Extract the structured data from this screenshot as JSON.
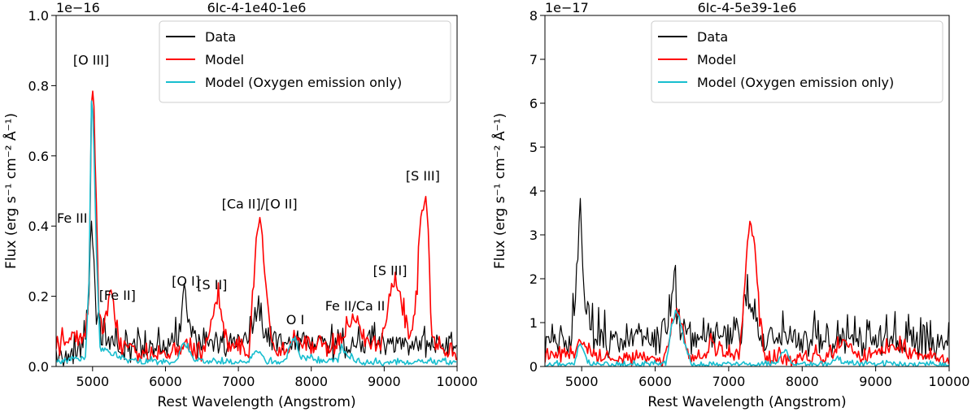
{
  "chart_data": [
    {
      "type": "line",
      "title": "6Ic-4-1e40-1e6",
      "offset_text": "1e−16",
      "xlabel": "Rest Wavelength (Angstrom)",
      "ylabel": "Flux (erg s⁻¹ cm⁻² Å⁻¹)",
      "xlim": [
        4500,
        10000
      ],
      "ylim": [
        0,
        1.0
      ],
      "xticks": [
        5000,
        6000,
        7000,
        8000,
        9000,
        10000
      ],
      "xtick_labels": [
        "5000",
        "6000",
        "7000",
        "8000",
        "9000",
        "10000"
      ],
      "yticks": [
        0,
        0.2,
        0.4,
        0.6,
        0.8,
        1.0
      ],
      "ytick_labels": [
        "0.0",
        "0.2",
        "0.4",
        "0.6",
        "0.8",
        "1.0"
      ],
      "legend_position": "top-right",
      "series": [
        {
          "name": "Data",
          "color": "#000000",
          "noise": 0.085,
          "x": [
            4500,
            4850,
            4900,
            4950,
            4990,
            5010,
            5050,
            5150,
            5400,
            5800,
            6100,
            6200,
            6260,
            6300,
            6450,
            6600,
            7000,
            7200,
            7280,
            7330,
            7450,
            7600,
            7750,
            7900,
            8200,
            8600,
            9000,
            9400,
            9700,
            10000
          ],
          "y": [
            0.02,
            0.04,
            0.08,
            0.2,
            0.4,
            0.32,
            0.12,
            0.06,
            0.04,
            0.05,
            0.05,
            0.08,
            0.22,
            0.1,
            0.05,
            0.05,
            0.06,
            0.1,
            0.18,
            0.1,
            0.06,
            0.06,
            0.07,
            0.06,
            0.05,
            0.05,
            0.05,
            0.05,
            0.05,
            0.04
          ]
        },
        {
          "name": "Model",
          "color": "#ff0000",
          "noise": 0.06,
          "x": [
            4500,
            4650,
            4800,
            4900,
            4950,
            4990,
            5010,
            5040,
            5080,
            5150,
            5250,
            5300,
            5400,
            5600,
            6000,
            6150,
            6250,
            6300,
            6400,
            6550,
            6680,
            6720,
            6780,
            6900,
            7150,
            7250,
            7300,
            7350,
            7450,
            7600,
            7700,
            7800,
            7950,
            8300,
            8450,
            8550,
            8650,
            8750,
            8950,
            9050,
            9150,
            9200,
            9350,
            9450,
            9500,
            9550,
            9600,
            9650,
            9800,
            10000
          ],
          "y": [
            0.04,
            0.08,
            0.06,
            0.08,
            0.2,
            0.78,
            0.8,
            0.56,
            0.15,
            0.1,
            0.22,
            0.12,
            0.05,
            0.03,
            0.02,
            0.03,
            0.06,
            0.06,
            0.03,
            0.04,
            0.18,
            0.2,
            0.1,
            0.04,
            0.04,
            0.38,
            0.4,
            0.3,
            0.05,
            0.04,
            0.05,
            0.07,
            0.04,
            0.05,
            0.08,
            0.14,
            0.12,
            0.06,
            0.05,
            0.16,
            0.22,
            0.2,
            0.08,
            0.2,
            0.42,
            0.48,
            0.4,
            0.06,
            0.04,
            0.02
          ]
        },
        {
          "name": "Model (Oxygen emission only)",
          "color": "#17becf",
          "noise": 0.02,
          "x": [
            4500,
            4900,
            4950,
            4985,
            5000,
            5020,
            5050,
            5100,
            5500,
            6150,
            6220,
            6300,
            6350,
            6450,
            7100,
            7250,
            7300,
            7400,
            7650,
            7720,
            7780,
            7850,
            8200,
            8350,
            8420,
            8500,
            8650,
            10000
          ],
          "y": [
            0.01,
            0.02,
            0.22,
            0.76,
            0.74,
            0.6,
            0.35,
            0.05,
            0.01,
            0.01,
            0.05,
            0.06,
            0.03,
            0.01,
            0.01,
            0.04,
            0.04,
            0.01,
            0.01,
            0.07,
            0.08,
            0.02,
            0.01,
            0.01,
            0.05,
            0.03,
            0.01,
            0.01
          ]
        }
      ],
      "annotations": [
        {
          "text": "[O III]",
          "x": 4980,
          "y": 0.86
        },
        {
          "text": "Fe III",
          "x": 4720,
          "y": 0.41
        },
        {
          "text": "[Fe II]",
          "x": 5340,
          "y": 0.19
        },
        {
          "text": "[Ca II]/[O II]",
          "x": 7290,
          "y": 0.45
        },
        {
          "text": "[O I]",
          "x": 6280,
          "y": 0.23
        },
        {
          "text": "[S II]",
          "x": 6640,
          "y": 0.22
        },
        {
          "text": "O I",
          "x": 7780,
          "y": 0.12
        },
        {
          "text": "Fe II/Ca II",
          "x": 8600,
          "y": 0.16
        },
        {
          "text": "[S III]",
          "x": 9080,
          "y": 0.26
        },
        {
          "text": "[S III]",
          "x": 9530,
          "y": 0.53
        }
      ]
    },
    {
      "type": "line",
      "title": "6Ic-4-5e39-1e6",
      "offset_text": "1e−17",
      "xlabel": "Rest Wavelength (Angstrom)",
      "ylabel": "Flux (erg s⁻¹ cm⁻² Å⁻¹)",
      "xlim": [
        4500,
        10000
      ],
      "ylim": [
        0,
        8
      ],
      "xticks": [
        5000,
        6000,
        7000,
        8000,
        9000,
        10000
      ],
      "xtick_labels": [
        "5000",
        "6000",
        "7000",
        "8000",
        "9000",
        "10000"
      ],
      "yticks": [
        0,
        1,
        2,
        3,
        4,
        5,
        6,
        7,
        8
      ],
      "ytick_labels": [
        "0",
        "1",
        "2",
        "3",
        "4",
        "5",
        "6",
        "7",
        "8"
      ],
      "legend_position": "top-right",
      "series": [
        {
          "name": "Data",
          "color": "#000000",
          "noise": 0.9,
          "x": [
            4500,
            4850,
            4920,
            4960,
            4985,
            5010,
            5060,
            5150,
            5400,
            5800,
            6150,
            6220,
            6260,
            6290,
            6350,
            6450,
            6700,
            7000,
            7200,
            7270,
            7330,
            7450,
            7700,
            8000,
            8500,
            9000,
            9500,
            10000
          ],
          "y": [
            0.3,
            0.4,
            1.8,
            3.2,
            4.0,
            2.4,
            1.2,
            0.7,
            0.5,
            0.5,
            0.6,
            1.5,
            2.1,
            1.3,
            0.8,
            0.6,
            0.6,
            0.6,
            0.8,
            1.6,
            1.0,
            0.6,
            0.6,
            0.5,
            0.5,
            0.5,
            0.5,
            0.4
          ]
        },
        {
          "name": "Model",
          "color": "#ff0000",
          "noise": 0.35,
          "x": [
            4500,
            4900,
            4960,
            5000,
            5040,
            5100,
            5400,
            6100,
            6200,
            6260,
            6320,
            6380,
            6450,
            6700,
            6760,
            6820,
            7150,
            7250,
            7300,
            7350,
            7420,
            7500,
            7800,
            8400,
            8550,
            8650,
            8800,
            9000,
            9300,
            9500,
            10000
          ],
          "y": [
            0.2,
            0.25,
            0.5,
            0.55,
            0.45,
            0.3,
            0.1,
            0.1,
            0.6,
            1.1,
            1.2,
            0.8,
            0.2,
            0.2,
            0.7,
            0.3,
            0.2,
            2.6,
            3.2,
            2.8,
            1.0,
            0.15,
            0.1,
            0.2,
            0.55,
            0.4,
            0.15,
            0.3,
            0.4,
            0.2,
            0.1
          ]
        },
        {
          "name": "Model (Oxygen emission only)",
          "color": "#17becf",
          "noise": 0.12,
          "x": [
            4500,
            4900,
            4960,
            4990,
            5030,
            5080,
            5300,
            6150,
            6220,
            6280,
            6330,
            6400,
            6500,
            7650,
            7720,
            7780,
            7850,
            8400,
            8480,
            8550,
            10000
          ],
          "y": [
            0.02,
            0.05,
            0.4,
            0.5,
            0.35,
            0.05,
            0.02,
            0.05,
            0.9,
            1.25,
            1.1,
            0.5,
            0.03,
            0.03,
            0.3,
            0.35,
            0.05,
            0.03,
            0.2,
            0.05,
            0.02
          ]
        }
      ],
      "annotations": []
    }
  ]
}
